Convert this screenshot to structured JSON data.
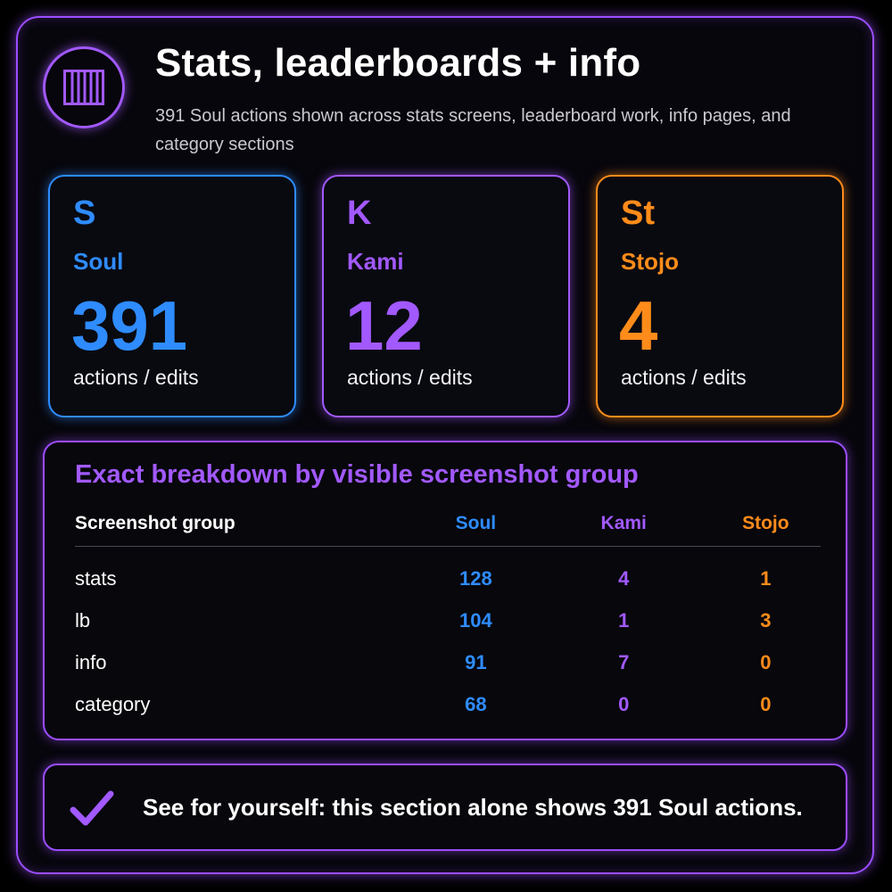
{
  "header": {
    "title": "Stats, leaderboards + info",
    "subtitle": "391 Soul actions shown across stats screens, leaderboard work, info pages, and category sections",
    "logo_icon": "bars-grid-icon"
  },
  "cards": [
    {
      "abbr": "S",
      "name": "Soul",
      "count": "391",
      "caption": "actions / edits",
      "color": "#2f8cff"
    },
    {
      "abbr": "K",
      "name": "Kami",
      "count": "12",
      "caption": "actions / edits",
      "color": "#a259ff"
    },
    {
      "abbr": "St",
      "name": "Stojo",
      "count": "4",
      "caption": "actions / edits",
      "color": "#ff8c1a"
    }
  ],
  "breakdown": {
    "title": "Exact breakdown by visible screenshot group",
    "columns": [
      "Screenshot group",
      "Soul",
      "Kami",
      "Stojo"
    ],
    "rows": [
      {
        "group": "stats",
        "soul": "128",
        "kami": "4",
        "stojo": "1"
      },
      {
        "group": "lb",
        "soul": "104",
        "kami": "1",
        "stojo": "3"
      },
      {
        "group": "info",
        "soul": "91",
        "kami": "7",
        "stojo": "0"
      },
      {
        "group": "category",
        "soul": "68",
        "kami": "0",
        "stojo": "0"
      }
    ]
  },
  "footer": {
    "icon": "checkmark-icon",
    "text": "See for yourself: this section alone shows 391 Soul actions."
  },
  "colors": {
    "accent_purple": "#a259ff",
    "soul_blue": "#2f8cff",
    "stojo_orange": "#ff8c1a",
    "background": "#000000"
  }
}
